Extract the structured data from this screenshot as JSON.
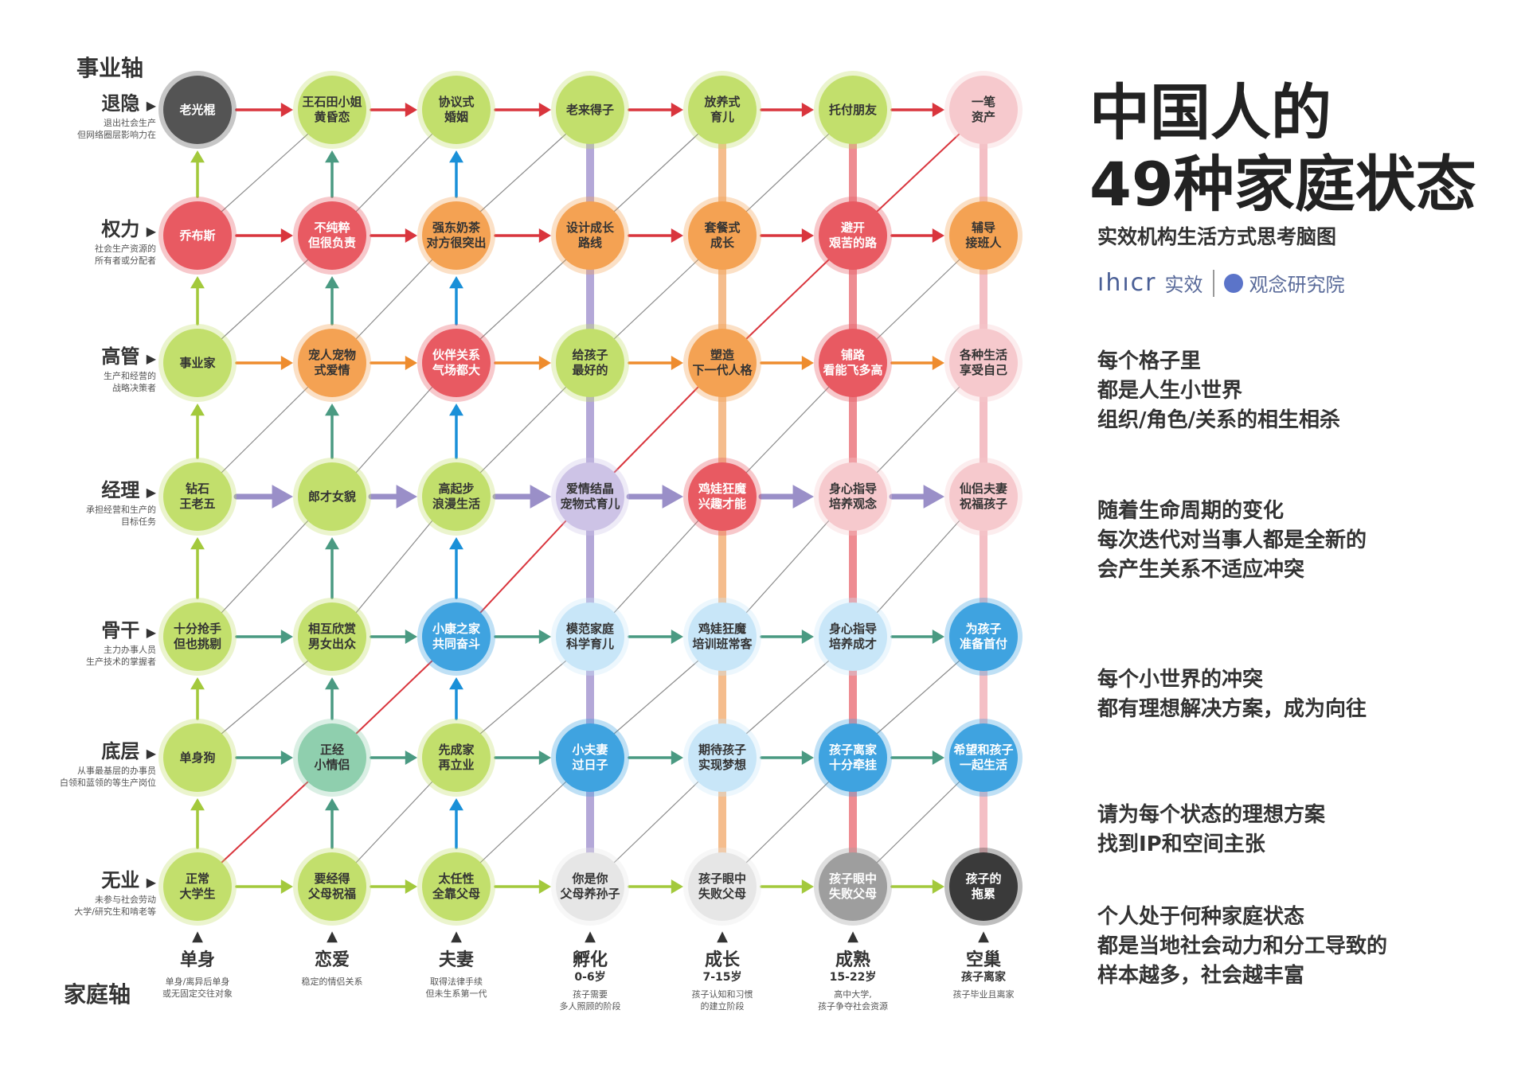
{
  "career_axis": "事业轴",
  "family_axis": "家庭轴",
  "rows": [
    {
      "name": "退隐",
      "desc": "退出社会生产\n但网络圈层影响力在"
    },
    {
      "name": "权力",
      "desc": "社会生产资源的\n所有者或分配者"
    },
    {
      "name": "高管",
      "desc": "生产和经营的\n战略决策者"
    },
    {
      "name": "经理",
      "desc": "承担经营和生产的\n目标任务"
    },
    {
      "name": "骨干",
      "desc": "主力办事人员\n生产技术的掌握者"
    },
    {
      "name": "底层",
      "desc": "从事最基层的办事员\n白领和蓝领的等生产岗位"
    },
    {
      "name": "无业",
      "desc": "未参与社会劳动\n大学/研究生和啃老等"
    }
  ],
  "columns": [
    {
      "name": "单身",
      "sub": "",
      "desc": "单身/离异后单身\n或无固定交往对象"
    },
    {
      "name": "恋爱",
      "sub": "",
      "desc": "稳定的情侣关系"
    },
    {
      "name": "夫妻",
      "sub": "",
      "desc": "取得法律手续\n但未生系第一代"
    },
    {
      "name": "孵化",
      "sub": "0-6岁",
      "desc": "孩子需要\n多人照顾的阶段"
    },
    {
      "name": "成长",
      "sub": "7-15岁",
      "desc": "孩子认知和习惯\n的建立阶段"
    },
    {
      "name": "成熟",
      "sub": "15-22岁",
      "desc": "高中大学,\n孩子争夺社会资源"
    },
    {
      "name": "空巢",
      "sub": "孩子离家",
      "desc": "孩子毕业且离家"
    }
  ],
  "nodes": [
    [
      "老光棍",
      "王石田小姐\n黄昏恋",
      "协议式\n婚姻",
      "老来得子",
      "放养式\n育儿",
      "托付朋友",
      "一笔\n资产"
    ],
    [
      "乔布斯",
      "不纯粹\n但很负责",
      "强东奶茶\n对方很突出",
      "设计成长\n路线",
      "套餐式\n成长",
      "避开\n艰苦的路",
      "辅导\n接班人"
    ],
    [
      "事业家",
      "宠人宠物\n式爱情",
      "伙伴关系\n气场都大",
      "给孩子\n最好的",
      "塑造\n下一代人格",
      "铺路\n看能飞多高",
      "各种生活\n享受自己"
    ],
    [
      "钻石\n王老五",
      "郎才女貌",
      "高起步\n浪漫生活",
      "爱情结晶\n宠物式育儿",
      "鸡娃狂魔\n兴趣才能",
      "身心指导\n培养观念",
      "仙侣夫妻\n祝福孩子"
    ],
    [
      "十分抢手\n但也挑剔",
      "相互欣赏\n男女出众",
      "小康之家\n共同奋斗",
      "模范家庭\n科学育儿",
      "鸡娃狂魔\n培训班常客",
      "身心指导\n培养成才",
      "为孩子\n准备首付"
    ],
    [
      "单身狗",
      "正经\n小情侣",
      "先成家\n再立业",
      "小夫妻\n过日子",
      "期待孩子\n实现梦想",
      "孩子离家\n十分牵挂",
      "希望和孩子\n一起生活"
    ],
    [
      "正常\n大学生",
      "要经得\n父母祝福",
      "太任性\n全靠父母",
      "你是你\n父母养孙子",
      "孩子眼中\n失败父母",
      "孩子眼中\n失败父母",
      "孩子的\n拖累"
    ]
  ],
  "node_colors": [
    [
      "#545454",
      "#c2df6c",
      "#c2df6c",
      "#c2df6c",
      "#c2df6c",
      "#c2df6c",
      "#f6c9cd"
    ],
    [
      "#e85a62",
      "#e85a62",
      "#f4a253",
      "#f4a253",
      "#f4a253",
      "#e85a62",
      "#f4a253"
    ],
    [
      "#c2df6c",
      "#f4a253",
      "#e85a62",
      "#c2df6c",
      "#f4a253",
      "#e85a62",
      "#f6c9cd"
    ],
    [
      "#c2df6c",
      "#c2df6c",
      "#c2df6c",
      "#cdc3e6",
      "#e85a62",
      "#f6c9cd",
      "#f6c9cd"
    ],
    [
      "#c2df6c",
      "#c2df6c",
      "#3fa3e0",
      "#c8e6f8",
      "#c8e6f8",
      "#c8e6f8",
      "#3fa3e0"
    ],
    [
      "#c2df6c",
      "#8fcfae",
      "#c2df6c",
      "#3fa3e0",
      "#c8e6f8",
      "#3fa3e0",
      "#3fa3e0"
    ],
    [
      "#c2df6c",
      "#c2df6c",
      "#c2df6c",
      "#e6e6e6",
      "#e6e6e6",
      "#9e9e9e",
      "#3a3a3a"
    ]
  ],
  "row_arrow_colors": [
    "#d9353d",
    "#d9353d",
    "#ee8c2e",
    "#9a8fc8",
    "#4a9a82",
    "#4a9a82",
    "#a3c93c"
  ],
  "up_arrow_colors": [
    "#a3c93c",
    "#4a9a82",
    "#1a90d8"
  ],
  "lifeline_colors": [
    "#a89ad2",
    "#f4b27a",
    "#ec7880",
    "#f3b5bb"
  ],
  "title_line1": "中国人的",
  "title_line2": "49种家庭状态",
  "subtitle": "实效机构生活方式思考脑图",
  "brand_logo": "ıhıcr",
  "brand_name1": "实效",
  "brand_name2": "观念研究院",
  "paragraphs": [
    "每个格子里\n都是人生小世界\n组织/角色/关系的相生相杀",
    "随着生命周期的变化\n每次迭代对当事人都是全新的\n会产生关系不适应冲突",
    "每个小世界的冲突\n都有理想解决方案，成为向往",
    "请为每个状态的理想方案\n找到IP和空间主张",
    "个人处于何种家庭状态\n都是当地社会动力和分工导致的\n样本越多，社会越丰富"
  ]
}
